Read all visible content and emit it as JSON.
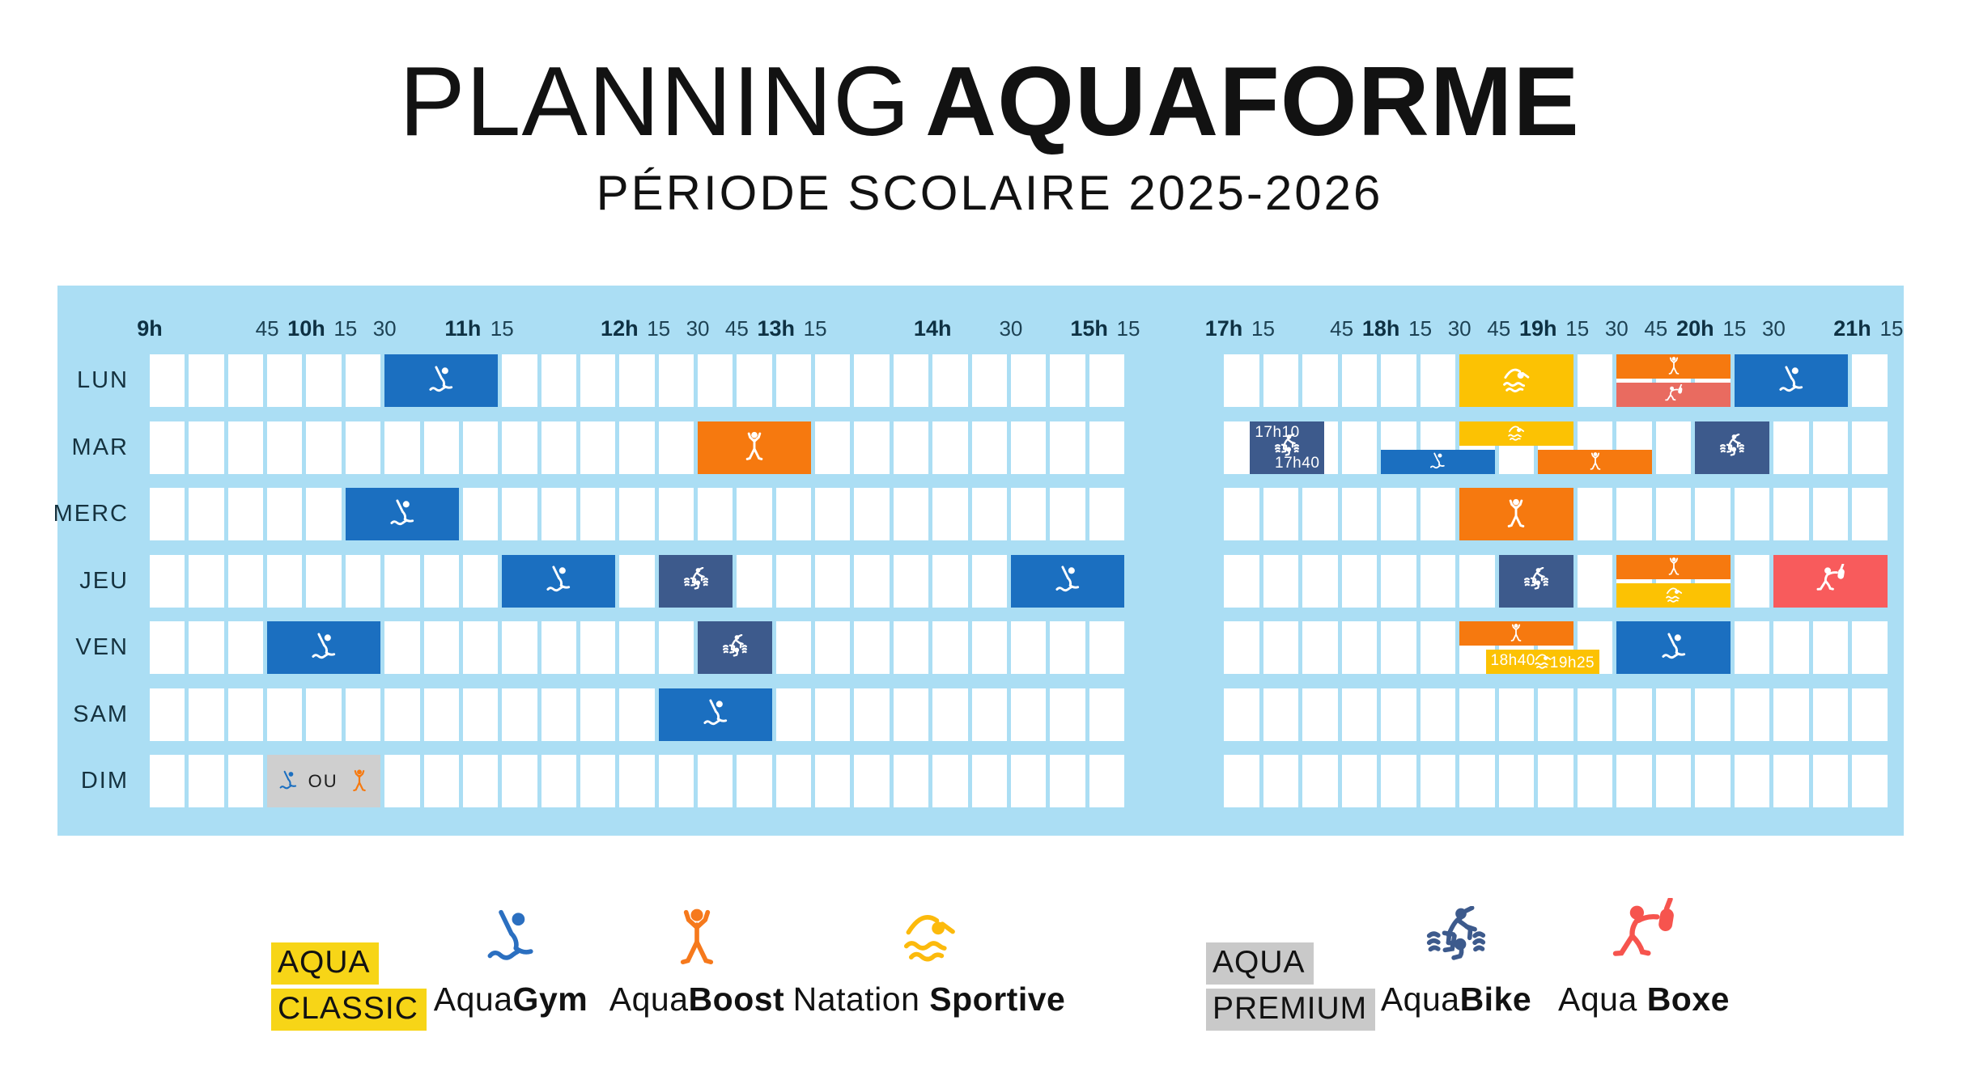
{
  "title": {
    "light": "PLANNING",
    "bold": "AQUAFORME",
    "subtitle": "PÉRIODE SCOLAIRE 2025-2026"
  },
  "days": [
    "LUN",
    "MAR",
    "MERC",
    "JEU",
    "VEN",
    "SAM",
    "DIM"
  ],
  "time_axis": {
    "left": {
      "start": "9h00",
      "end": "15h15",
      "cells": 25,
      "labels": [
        {
          "text": "9h",
          "at": "9h00",
          "bold": true
        },
        {
          "text": "45",
          "at": "9h45",
          "bold": false
        },
        {
          "text": "10h",
          "at": "10h00",
          "bold": true
        },
        {
          "text": "15",
          "at": "10h15",
          "bold": false
        },
        {
          "text": "30",
          "at": "10h30",
          "bold": false
        },
        {
          "text": "11h",
          "at": "11h00",
          "bold": true
        },
        {
          "text": "15",
          "at": "11h15",
          "bold": false
        },
        {
          "text": "12h",
          "at": "12h00",
          "bold": true
        },
        {
          "text": "15",
          "at": "12h15",
          "bold": false
        },
        {
          "text": "30",
          "at": "12h30",
          "bold": false
        },
        {
          "text": "45",
          "at": "12h45",
          "bold": false
        },
        {
          "text": "13h",
          "at": "13h00",
          "bold": true
        },
        {
          "text": "15",
          "at": "13h15",
          "bold": false
        },
        {
          "text": "14h",
          "at": "14h00",
          "bold": true
        },
        {
          "text": "30",
          "at": "14h30",
          "bold": false
        },
        {
          "text": "15h",
          "at": "15h00",
          "bold": true
        },
        {
          "text": "15",
          "at": "15h15",
          "bold": false
        }
      ]
    },
    "right": {
      "start": "17h00",
      "end": "21h15",
      "cells": 17,
      "labels": [
        {
          "text": "17h",
          "at": "17h00",
          "bold": true
        },
        {
          "text": "15",
          "at": "17h15",
          "bold": false
        },
        {
          "text": "45",
          "at": "17h45",
          "bold": false
        },
        {
          "text": "18h",
          "at": "18h00",
          "bold": true
        },
        {
          "text": "15",
          "at": "18h15",
          "bold": false
        },
        {
          "text": "30",
          "at": "18h30",
          "bold": false
        },
        {
          "text": "45",
          "at": "18h45",
          "bold": false
        },
        {
          "text": "19h",
          "at": "19h00",
          "bold": true
        },
        {
          "text": "15",
          "at": "19h15",
          "bold": false
        },
        {
          "text": "30",
          "at": "19h30",
          "bold": false
        },
        {
          "text": "45",
          "at": "19h45",
          "bold": false
        },
        {
          "text": "20h",
          "at": "20h00",
          "bold": true
        },
        {
          "text": "15",
          "at": "20h15",
          "bold": false
        },
        {
          "text": "30",
          "at": "20h30",
          "bold": false
        },
        {
          "text": "21h",
          "at": "21h00",
          "bold": true
        },
        {
          "text": "15",
          "at": "21h15",
          "bold": false
        }
      ]
    }
  },
  "activities": {
    "aquagym": {
      "label": "AquaGym",
      "color": "#1b6fc0",
      "icon": "aquagym-icon"
    },
    "aquaboost": {
      "label": "AquaBoost",
      "color": "#f6790f",
      "icon": "aquaboost-icon"
    },
    "natation": {
      "label": "Natation Sportive",
      "color": "#fcc203",
      "icon": "natation-icon"
    },
    "aquabike": {
      "label": "AquaBike",
      "color": "#3d5a8c",
      "icon": "aquabike-icon"
    },
    "aquaboxe": {
      "label": "Aqua Boxe",
      "color": "#f85b5c",
      "icon": "aquaboxe-icon"
    },
    "aquaboxe_soft": {
      "label": "Aqua Boxe",
      "color": "#e96b60",
      "icon": "aquaboxe-icon"
    },
    "premium_choice": {
      "label": "AquaGym OU AquaBoost",
      "color": "#cfcfcf",
      "icon": null
    }
  },
  "events": [
    {
      "day": "LUN",
      "block": "left",
      "start": "10h30",
      "end": "11h15",
      "activity": "aquagym",
      "layer": "full"
    },
    {
      "day": "LUN",
      "block": "right",
      "start": "18h30",
      "end": "19h15",
      "activity": "natation",
      "layer": "full"
    },
    {
      "day": "LUN",
      "block": "right",
      "start": "19h30",
      "end": "20h15",
      "activity": "aquaboost",
      "layer": "top"
    },
    {
      "day": "LUN",
      "block": "right",
      "start": "19h30",
      "end": "20h15",
      "activity": "aquaboxe_soft",
      "layer": "bottom"
    },
    {
      "day": "LUN",
      "block": "right",
      "start": "20h15",
      "end": "21h00",
      "activity": "aquagym",
      "layer": "full"
    },
    {
      "day": "MAR",
      "block": "left",
      "start": "12h30",
      "end": "13h15",
      "activity": "aquaboost",
      "layer": "full"
    },
    {
      "day": "MAR",
      "block": "right",
      "start": "17h10",
      "end": "17h40",
      "activity": "aquabike",
      "layer": "full",
      "start_label": "17h10",
      "end_label": "17h40"
    },
    {
      "day": "MAR",
      "block": "right",
      "start": "18h00",
      "end": "18h45",
      "activity": "aquagym",
      "layer": "bottom"
    },
    {
      "day": "MAR",
      "block": "right",
      "start": "18h30",
      "end": "19h15",
      "activity": "natation",
      "layer": "top"
    },
    {
      "day": "MAR",
      "block": "right",
      "start": "19h00",
      "end": "19h45",
      "activity": "aquaboost",
      "layer": "bottom"
    },
    {
      "day": "MAR",
      "block": "right",
      "start": "20h00",
      "end": "20h30",
      "activity": "aquabike",
      "layer": "full"
    },
    {
      "day": "MERC",
      "block": "left",
      "start": "10h15",
      "end": "11h00",
      "activity": "aquagym",
      "layer": "full"
    },
    {
      "day": "MERC",
      "block": "right",
      "start": "18h30",
      "end": "19h15",
      "activity": "aquaboost",
      "layer": "full"
    },
    {
      "day": "JEU",
      "block": "left",
      "start": "11h15",
      "end": "12h00",
      "activity": "aquagym",
      "layer": "full"
    },
    {
      "day": "JEU",
      "block": "left",
      "start": "12h15",
      "end": "12h45",
      "activity": "aquabike",
      "layer": "full"
    },
    {
      "day": "JEU",
      "block": "left",
      "start": "14h30",
      "end": "15h15",
      "activity": "aquagym",
      "layer": "full"
    },
    {
      "day": "JEU",
      "block": "right",
      "start": "18h45",
      "end": "19h15",
      "activity": "aquabike",
      "layer": "full"
    },
    {
      "day": "JEU",
      "block": "right",
      "start": "19h30",
      "end": "20h15",
      "activity": "aquaboost",
      "layer": "top"
    },
    {
      "day": "JEU",
      "block": "right",
      "start": "19h30",
      "end": "20h15",
      "activity": "natation",
      "layer": "bottom"
    },
    {
      "day": "JEU",
      "block": "right",
      "start": "20h30",
      "end": "21h15",
      "activity": "aquaboxe",
      "layer": "full"
    },
    {
      "day": "VEN",
      "block": "left",
      "start": "9h45",
      "end": "10h30",
      "activity": "aquagym",
      "layer": "full"
    },
    {
      "day": "VEN",
      "block": "left",
      "start": "12h30",
      "end": "13h00",
      "activity": "aquabike",
      "layer": "full"
    },
    {
      "day": "VEN",
      "block": "right",
      "start": "18h30",
      "end": "19h15",
      "activity": "aquaboost",
      "layer": "top"
    },
    {
      "day": "VEN",
      "block": "right",
      "start": "18h40",
      "end": "19h25",
      "activity": "natation",
      "layer": "bottom",
      "start_label": "18h40",
      "end_label": "19h25"
    },
    {
      "day": "VEN",
      "block": "right",
      "start": "19h30",
      "end": "20h15",
      "activity": "aquagym",
      "layer": "full"
    },
    {
      "day": "SAM",
      "block": "left",
      "start": "12h15",
      "end": "13h00",
      "activity": "aquagym",
      "layer": "full"
    },
    {
      "day": "DIM",
      "block": "left",
      "start": "9h45",
      "end": "10h30",
      "activity": "premium_choice",
      "layer": "full",
      "or_text": "OU",
      "choices": [
        "aquagym",
        "aquaboost"
      ]
    }
  ],
  "legend": [
    {
      "id": "aqua-classic",
      "type": "highlight",
      "lines": [
        "AQUA",
        "CLASSIC"
      ],
      "bg": "#f7d517"
    },
    {
      "id": "aquagym",
      "type": "activity",
      "icon": "aquagym-icon",
      "icon_color": "#2b6fc0",
      "parts": [
        {
          "text": "Aqua",
          "bold": false
        },
        {
          "text": "Gym",
          "bold": true
        }
      ]
    },
    {
      "id": "aquaboost",
      "type": "activity",
      "icon": "aquaboost-icon",
      "icon_color": "#f6791c",
      "parts": [
        {
          "text": "Aqua",
          "bold": false
        },
        {
          "text": "Boost",
          "bold": true
        }
      ]
    },
    {
      "id": "natation-sportive",
      "type": "activity",
      "icon": "natation-icon",
      "icon_color": "#fcba0c",
      "parts": [
        {
          "text": "Natation ",
          "bold": false
        },
        {
          "text": "Sportive",
          "bold": true
        }
      ]
    },
    {
      "id": "aqua-premium",
      "type": "highlight",
      "lines": [
        "AQUA",
        "PREMIUM"
      ],
      "bg": "#c9c9c9"
    },
    {
      "id": "aquabike",
      "type": "activity",
      "icon": "aquabike-icon",
      "icon_color": "#3d5a8c",
      "parts": [
        {
          "text": "Aqua",
          "bold": false
        },
        {
          "text": "Bike",
          "bold": true
        }
      ]
    },
    {
      "id": "aqua-boxe",
      "type": "activity",
      "icon": "aquaboxe-icon",
      "icon_color": "#f6544e",
      "parts": [
        {
          "text": "Aqua ",
          "bold": false
        },
        {
          "text": "Boxe",
          "bold": true
        }
      ]
    }
  ],
  "colors": {
    "panel_bg": "#abdef4",
    "cell_bg": "#ffffff",
    "label_text": "#15323f",
    "title_text": "#121212",
    "classic_highlight": "#f7d517",
    "premium_highlight": "#c9c9c9"
  }
}
